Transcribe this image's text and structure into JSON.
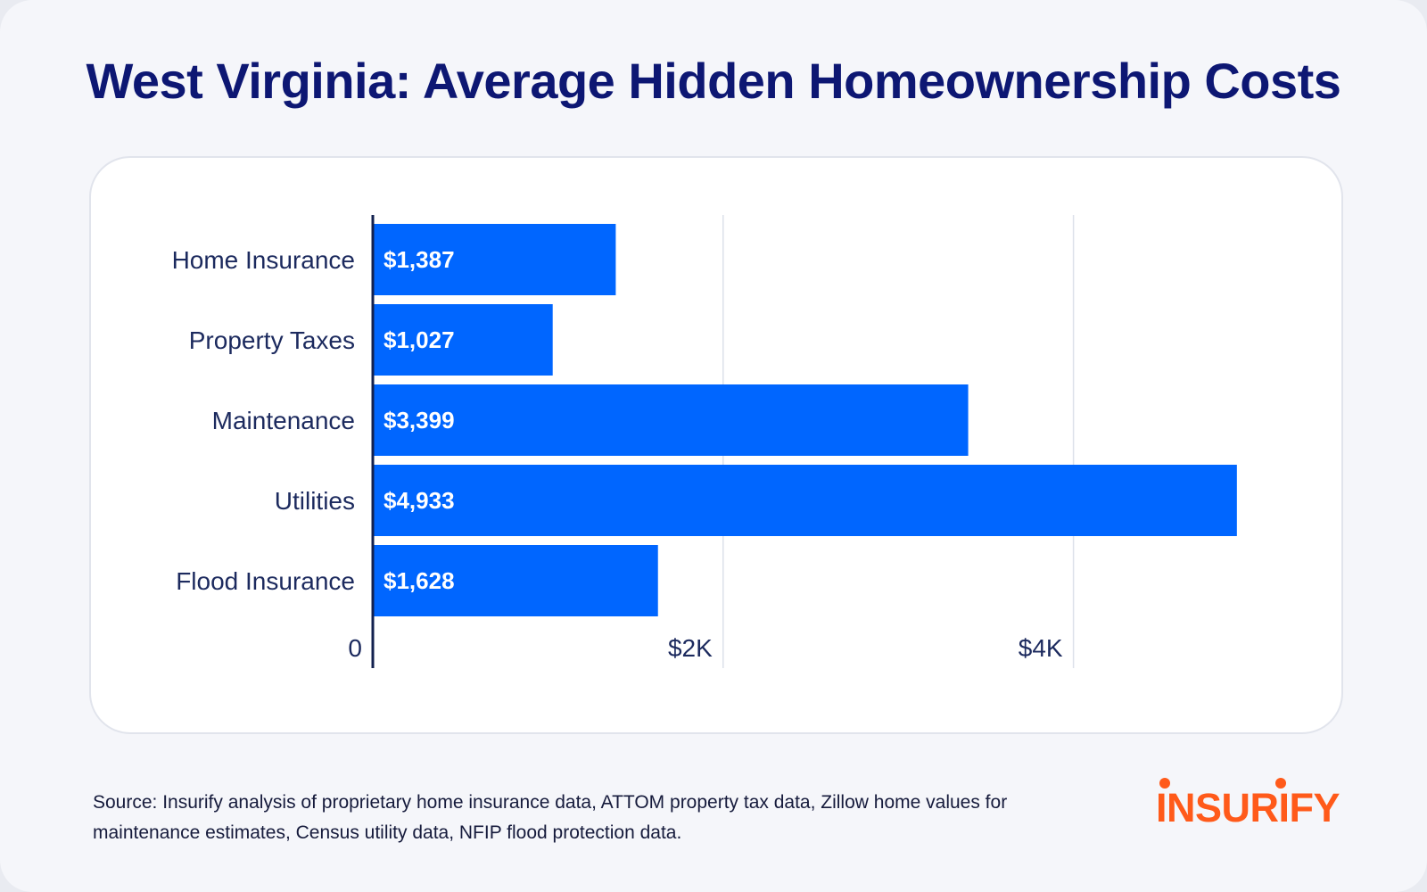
{
  "title": "West Virginia: Average Hidden Homeownership Costs",
  "chart_data": {
    "type": "bar",
    "orientation": "horizontal",
    "categories": [
      "Home Insurance",
      "Property Taxes",
      "Maintenance",
      "Utilities",
      "Flood Insurance"
    ],
    "values": [
      1387,
      1027,
      3399,
      4933,
      1628
    ],
    "value_labels": [
      "$1,387",
      "$1,027",
      "$3,399",
      "$4,933",
      "$1,628"
    ],
    "xlim": [
      0,
      5000
    ],
    "xticks": [
      0,
      2000,
      4000
    ],
    "xtick_labels": [
      "0",
      "$2K",
      "$4K"
    ],
    "xlabel": "",
    "ylabel": "",
    "grid": true,
    "bar_color": "#0066ff"
  },
  "source": "Source: Insurify analysis of proprietary home insurance data, ATTOM property tax data, Zillow home values for maintenance estimates, Census utility data, NFIP flood protection data.",
  "logo": {
    "text": "INSURIFY",
    "color": "#ff5a1a"
  },
  "colors": {
    "title": "#0d1773",
    "label": "#1c2a5e",
    "axis": "#13214f",
    "grid": "#dde1ea",
    "bar": "#0066ff"
  }
}
